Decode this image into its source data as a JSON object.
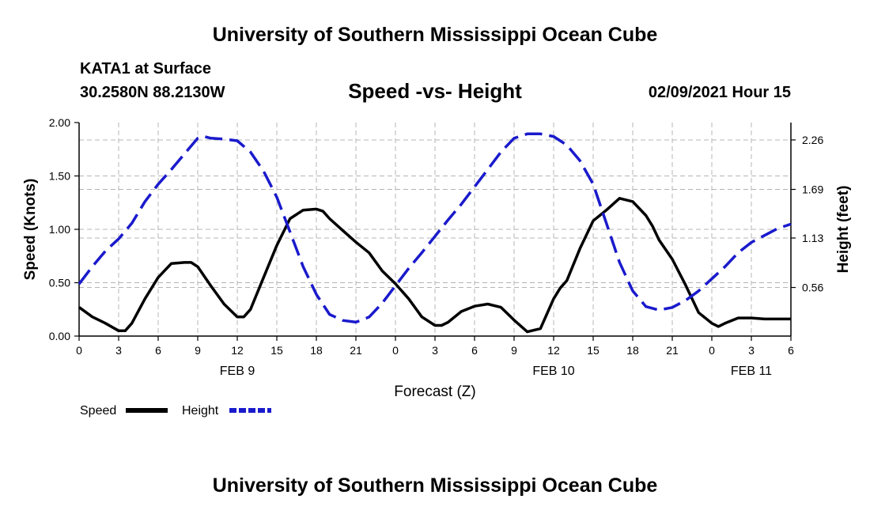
{
  "header": {
    "top_title": "University of Southern Mississippi Ocean Cube",
    "bottom_title": "University of Southern Mississippi Ocean Cube",
    "station": "KATA1 at Surface",
    "coordinates": "30.2580N 88.2130W",
    "chart_title": "Speed -vs- Height",
    "datestamp": "02/09/2021 Hour 15"
  },
  "colors": {
    "speed": "#000000",
    "height": "#1a1acc",
    "grid": "#b4b4b4"
  },
  "chart_data": {
    "type": "line",
    "title": "Speed -vs- Height",
    "xlabel": "Forecast (Z)",
    "ylabel": "Speed (Knots)",
    "y2label": "Height (feet)",
    "xlim": [
      0,
      54
    ],
    "ylim": [
      0,
      2.0
    ],
    "y2lim": [
      0,
      2.46
    ],
    "x_ticks": [
      0,
      3,
      6,
      9,
      12,
      15,
      18,
      21,
      24,
      27,
      30,
      33,
      36,
      39,
      42,
      45,
      48,
      51,
      54
    ],
    "x_tick_labels": [
      "0",
      "3",
      "6",
      "9",
      "12",
      "15",
      "18",
      "21",
      "0",
      "3",
      "6",
      "9",
      "12",
      "15",
      "18",
      "21",
      "0",
      "3",
      "6"
    ],
    "date_labels": [
      {
        "x": 12,
        "label": "FEB 9"
      },
      {
        "x": 36,
        "label": "FEB 10"
      },
      {
        "x": 51,
        "label": "FEB 11"
      }
    ],
    "y_ticks": [
      0.0,
      0.5,
      1.0,
      1.5,
      2.0
    ],
    "y_tick_labels": [
      "0.00",
      "0.50",
      "1.00",
      "1.50",
      "2.00"
    ],
    "y2_ticks": [
      0.56,
      1.13,
      1.69,
      2.26
    ],
    "y2_tick_labels": [
      "0.56",
      "1.13",
      "1.69",
      "2.26"
    ],
    "grid": true,
    "legend_position": "bottom-left",
    "series": [
      {
        "name": "Speed",
        "axis": "left",
        "style": "solid",
        "x": [
          0,
          1,
          2,
          3,
          3.5,
          4,
          5,
          6,
          7,
          8,
          8.5,
          9,
          10,
          11,
          12,
          12.5,
          13,
          14,
          15,
          16,
          17,
          18,
          18.5,
          19,
          20,
          21,
          22,
          23,
          24,
          25,
          26,
          27,
          27.5,
          28,
          29,
          30,
          31,
          32,
          33,
          34,
          35,
          36,
          36.5,
          37,
          38,
          39,
          40,
          41,
          42,
          43,
          43.5,
          44,
          45,
          46,
          47,
          48,
          48.5,
          49,
          50,
          51,
          52,
          53,
          54
        ],
        "values": [
          0.27,
          0.18,
          0.12,
          0.05,
          0.05,
          0.12,
          0.35,
          0.55,
          0.68,
          0.69,
          0.69,
          0.65,
          0.47,
          0.3,
          0.18,
          0.18,
          0.25,
          0.55,
          0.85,
          1.1,
          1.18,
          1.19,
          1.17,
          1.1,
          0.99,
          0.88,
          0.78,
          0.61,
          0.49,
          0.35,
          0.18,
          0.1,
          0.1,
          0.13,
          0.23,
          0.28,
          0.3,
          0.27,
          0.15,
          0.04,
          0.07,
          0.35,
          0.45,
          0.52,
          0.82,
          1.08,
          1.18,
          1.29,
          1.26,
          1.13,
          1.03,
          0.9,
          0.72,
          0.48,
          0.22,
          0.12,
          0.09,
          0.12,
          0.17,
          0.17,
          0.16,
          0.16,
          0.16
        ]
      },
      {
        "name": "Height",
        "axis": "right",
        "style": "dashed",
        "x": [
          0,
          1,
          2,
          3,
          4,
          5,
          6,
          7,
          8,
          9,
          9.5,
          10,
          11,
          12,
          13,
          14,
          15,
          16,
          17,
          18,
          19,
          20,
          21,
          22,
          23,
          24,
          25,
          26,
          27,
          28,
          29,
          30,
          31,
          32,
          33,
          34,
          35,
          36,
          36.5,
          37,
          38,
          39,
          40,
          41,
          42,
          43,
          44,
          45,
          46,
          47,
          48,
          49,
          50,
          51,
          52,
          53,
          54
        ],
        "values": [
          0.6,
          0.8,
          0.98,
          1.12,
          1.3,
          1.55,
          1.75,
          1.92,
          2.1,
          2.28,
          2.3,
          2.28,
          2.27,
          2.25,
          2.12,
          1.9,
          1.6,
          1.2,
          0.8,
          0.48,
          0.25,
          0.18,
          0.16,
          0.22,
          0.38,
          0.58,
          0.78,
          0.96,
          1.15,
          1.34,
          1.52,
          1.72,
          1.92,
          2.12,
          2.28,
          2.33,
          2.33,
          2.3,
          2.25,
          2.2,
          2.02,
          1.75,
          1.3,
          0.85,
          0.52,
          0.34,
          0.3,
          0.33,
          0.41,
          0.52,
          0.66,
          0.8,
          0.96,
          1.08,
          1.16,
          1.24,
          1.29
        ]
      }
    ]
  }
}
